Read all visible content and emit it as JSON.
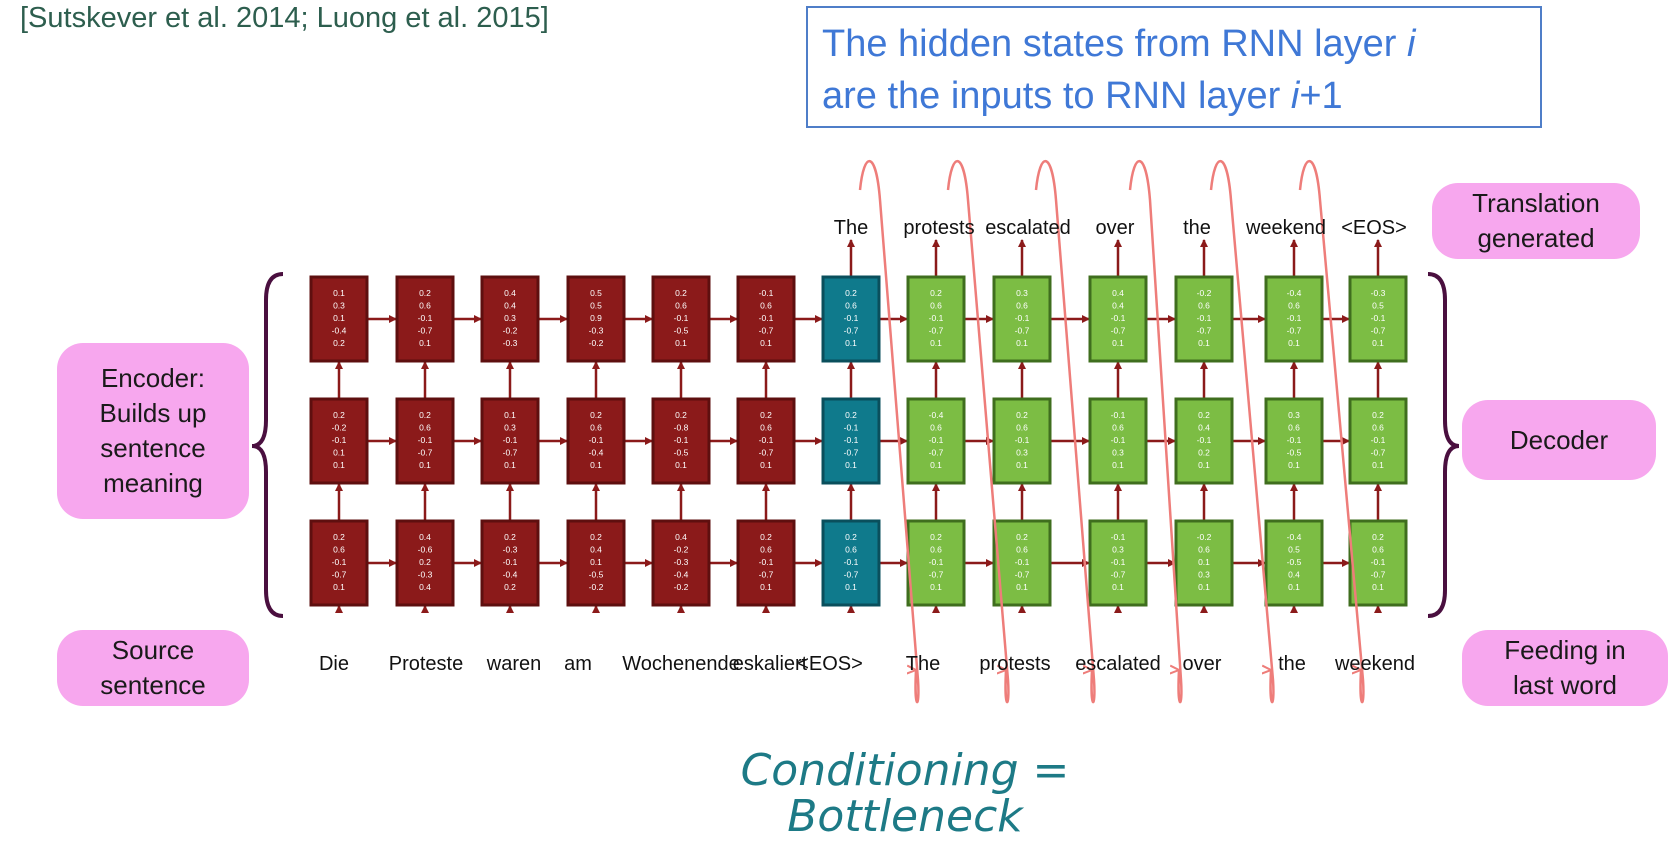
{
  "citation": "[Sutskever et al. 2014; Luong et al. 2015]",
  "note": {
    "line1_prefix": "The hidden states from RNN layer ",
    "line1_var": "i",
    "line2_prefix": "are the inputs to RNN layer ",
    "line2_var": "i",
    "line2_suffix": "+1"
  },
  "labels": {
    "encoder": [
      "Encoder:",
      "Builds up",
      "sentence",
      "meaning"
    ],
    "source": [
      "Source",
      "sentence"
    ],
    "translation": [
      "Translation",
      "generated"
    ],
    "decoder": "Decoder",
    "feeding": [
      "Feeding in",
      "last word"
    ]
  },
  "handwritten": [
    "Conditioning =",
    "Bottleneck"
  ],
  "colors": {
    "encoder_cell": "#8b1a1a",
    "bridge_cell": "#0f7a8c",
    "decoder_cell": "#7cbd44",
    "arrow": "#8b1a1a",
    "loop": "#ee7d7a",
    "brace": "#4a0f3f",
    "pill": "#f7a7ee",
    "note_border": "#4f7ec8",
    "note_text": "#3f78d6",
    "citation_text": "#2d5e4e",
    "hand_text": "#1d7a86"
  },
  "input_words": [
    "Die",
    "Proteste",
    "waren",
    "am",
    "Wochenende",
    "eskaliert",
    "<EOS>",
    "The",
    "protests",
    "escalated",
    "over",
    "the",
    "weekend"
  ],
  "output_words": [
    "The",
    "protests",
    "escalated",
    "over",
    "the",
    "weekend",
    "<EOS>"
  ],
  "cells": [
    {
      "kind": "enc",
      "layers": [
        [
          "0.2",
          "0.6",
          "-0.1",
          "-0.7",
          "0.1"
        ],
        [
          "0.2",
          "-0.2",
          "-0.1",
          "0.1",
          "0.1"
        ],
        [
          "0.1",
          "0.3",
          "0.1",
          "-0.4",
          "0.2"
        ]
      ]
    },
    {
      "kind": "enc",
      "layers": [
        [
          "0.4",
          "-0.6",
          "0.2",
          "-0.3",
          "0.4"
        ],
        [
          "0.2",
          "0.6",
          "-0.1",
          "-0.7",
          "0.1"
        ],
        [
          "0.2",
          "0.6",
          "-0.1",
          "-0.7",
          "0.1"
        ]
      ]
    },
    {
      "kind": "enc",
      "layers": [
        [
          "0.2",
          "-0.3",
          "-0.1",
          "-0.4",
          "0.2"
        ],
        [
          "0.1",
          "0.3",
          "-0.1",
          "-0.7",
          "0.1"
        ],
        [
          "0.4",
          "0.4",
          "0.3",
          "-0.2",
          "-0.3"
        ]
      ]
    },
    {
      "kind": "enc",
      "layers": [
        [
          "0.2",
          "0.4",
          "0.1",
          "-0.5",
          "-0.2"
        ],
        [
          "0.2",
          "0.6",
          "-0.1",
          "-0.4",
          "0.1"
        ],
        [
          "0.5",
          "0.5",
          "0.9",
          "-0.3",
          "-0.2"
        ]
      ]
    },
    {
      "kind": "enc",
      "layers": [
        [
          "0.4",
          "-0.2",
          "-0.3",
          "-0.4",
          "-0.2"
        ],
        [
          "0.2",
          "-0.8",
          "-0.1",
          "-0.5",
          "0.1"
        ],
        [
          "0.2",
          "0.6",
          "-0.1",
          "-0.5",
          "0.1"
        ]
      ]
    },
    {
      "kind": "enc",
      "layers": [
        [
          "0.2",
          "0.6",
          "-0.1",
          "-0.7",
          "0.1"
        ],
        [
          "0.2",
          "0.6",
          "-0.1",
          "-0.7",
          "0.1"
        ],
        [
          "-0.1",
          "0.6",
          "-0.1",
          "-0.7",
          "0.1"
        ]
      ]
    },
    {
      "kind": "bridge",
      "layers": [
        [
          "0.2",
          "0.6",
          "-0.1",
          "-0.7",
          "0.1"
        ],
        [
          "0.2",
          "-0.1",
          "-0.1",
          "-0.7",
          "0.1"
        ],
        [
          "0.2",
          "0.6",
          "-0.1",
          "-0.7",
          "0.1"
        ]
      ]
    },
    {
      "kind": "dec",
      "layers": [
        [
          "0.2",
          "0.6",
          "-0.1",
          "-0.7",
          "0.1"
        ],
        [
          "-0.4",
          "0.6",
          "-0.1",
          "-0.7",
          "0.1"
        ],
        [
          "0.2",
          "0.6",
          "-0.1",
          "-0.7",
          "0.1"
        ]
      ]
    },
    {
      "kind": "dec",
      "layers": [
        [
          "0.2",
          "0.6",
          "-0.1",
          "-0.7",
          "0.1"
        ],
        [
          "0.2",
          "0.6",
          "-0.1",
          "0.3",
          "0.1"
        ],
        [
          "0.3",
          "0.6",
          "-0.1",
          "-0.7",
          "0.1"
        ]
      ]
    },
    {
      "kind": "dec",
      "layers": [
        [
          "-0.1",
          "0.3",
          "-0.1",
          "-0.7",
          "0.1"
        ],
        [
          "-0.1",
          "0.6",
          "-0.1",
          "0.3",
          "0.1"
        ],
        [
          "0.4",
          "0.4",
          "-0.1",
          "-0.7",
          "0.1"
        ]
      ]
    },
    {
      "kind": "dec",
      "layers": [
        [
          "-0.2",
          "0.6",
          "0.1",
          "0.3",
          "0.1"
        ],
        [
          "0.2",
          "0.4",
          "-0.1",
          "0.2",
          "0.1"
        ],
        [
          "-0.2",
          "0.6",
          "-0.1",
          "-0.7",
          "0.1"
        ]
      ]
    },
    {
      "kind": "dec",
      "layers": [
        [
          "-0.4",
          "0.5",
          "-0.5",
          "0.4",
          "0.1"
        ],
        [
          "0.3",
          "0.6",
          "-0.1",
          "-0.5",
          "0.1"
        ],
        [
          "-0.4",
          "0.6",
          "-0.1",
          "-0.7",
          "0.1"
        ]
      ]
    },
    {
      "kind": "dec",
      "layers": [
        [
          "0.2",
          "0.6",
          "-0.1",
          "-0.7",
          "0.1"
        ],
        [
          "0.2",
          "0.6",
          "-0.1",
          "-0.7",
          "0.1"
        ],
        [
          "-0.3",
          "0.5",
          "-0.1",
          "-0.7",
          "0.1"
        ]
      ]
    }
  ]
}
